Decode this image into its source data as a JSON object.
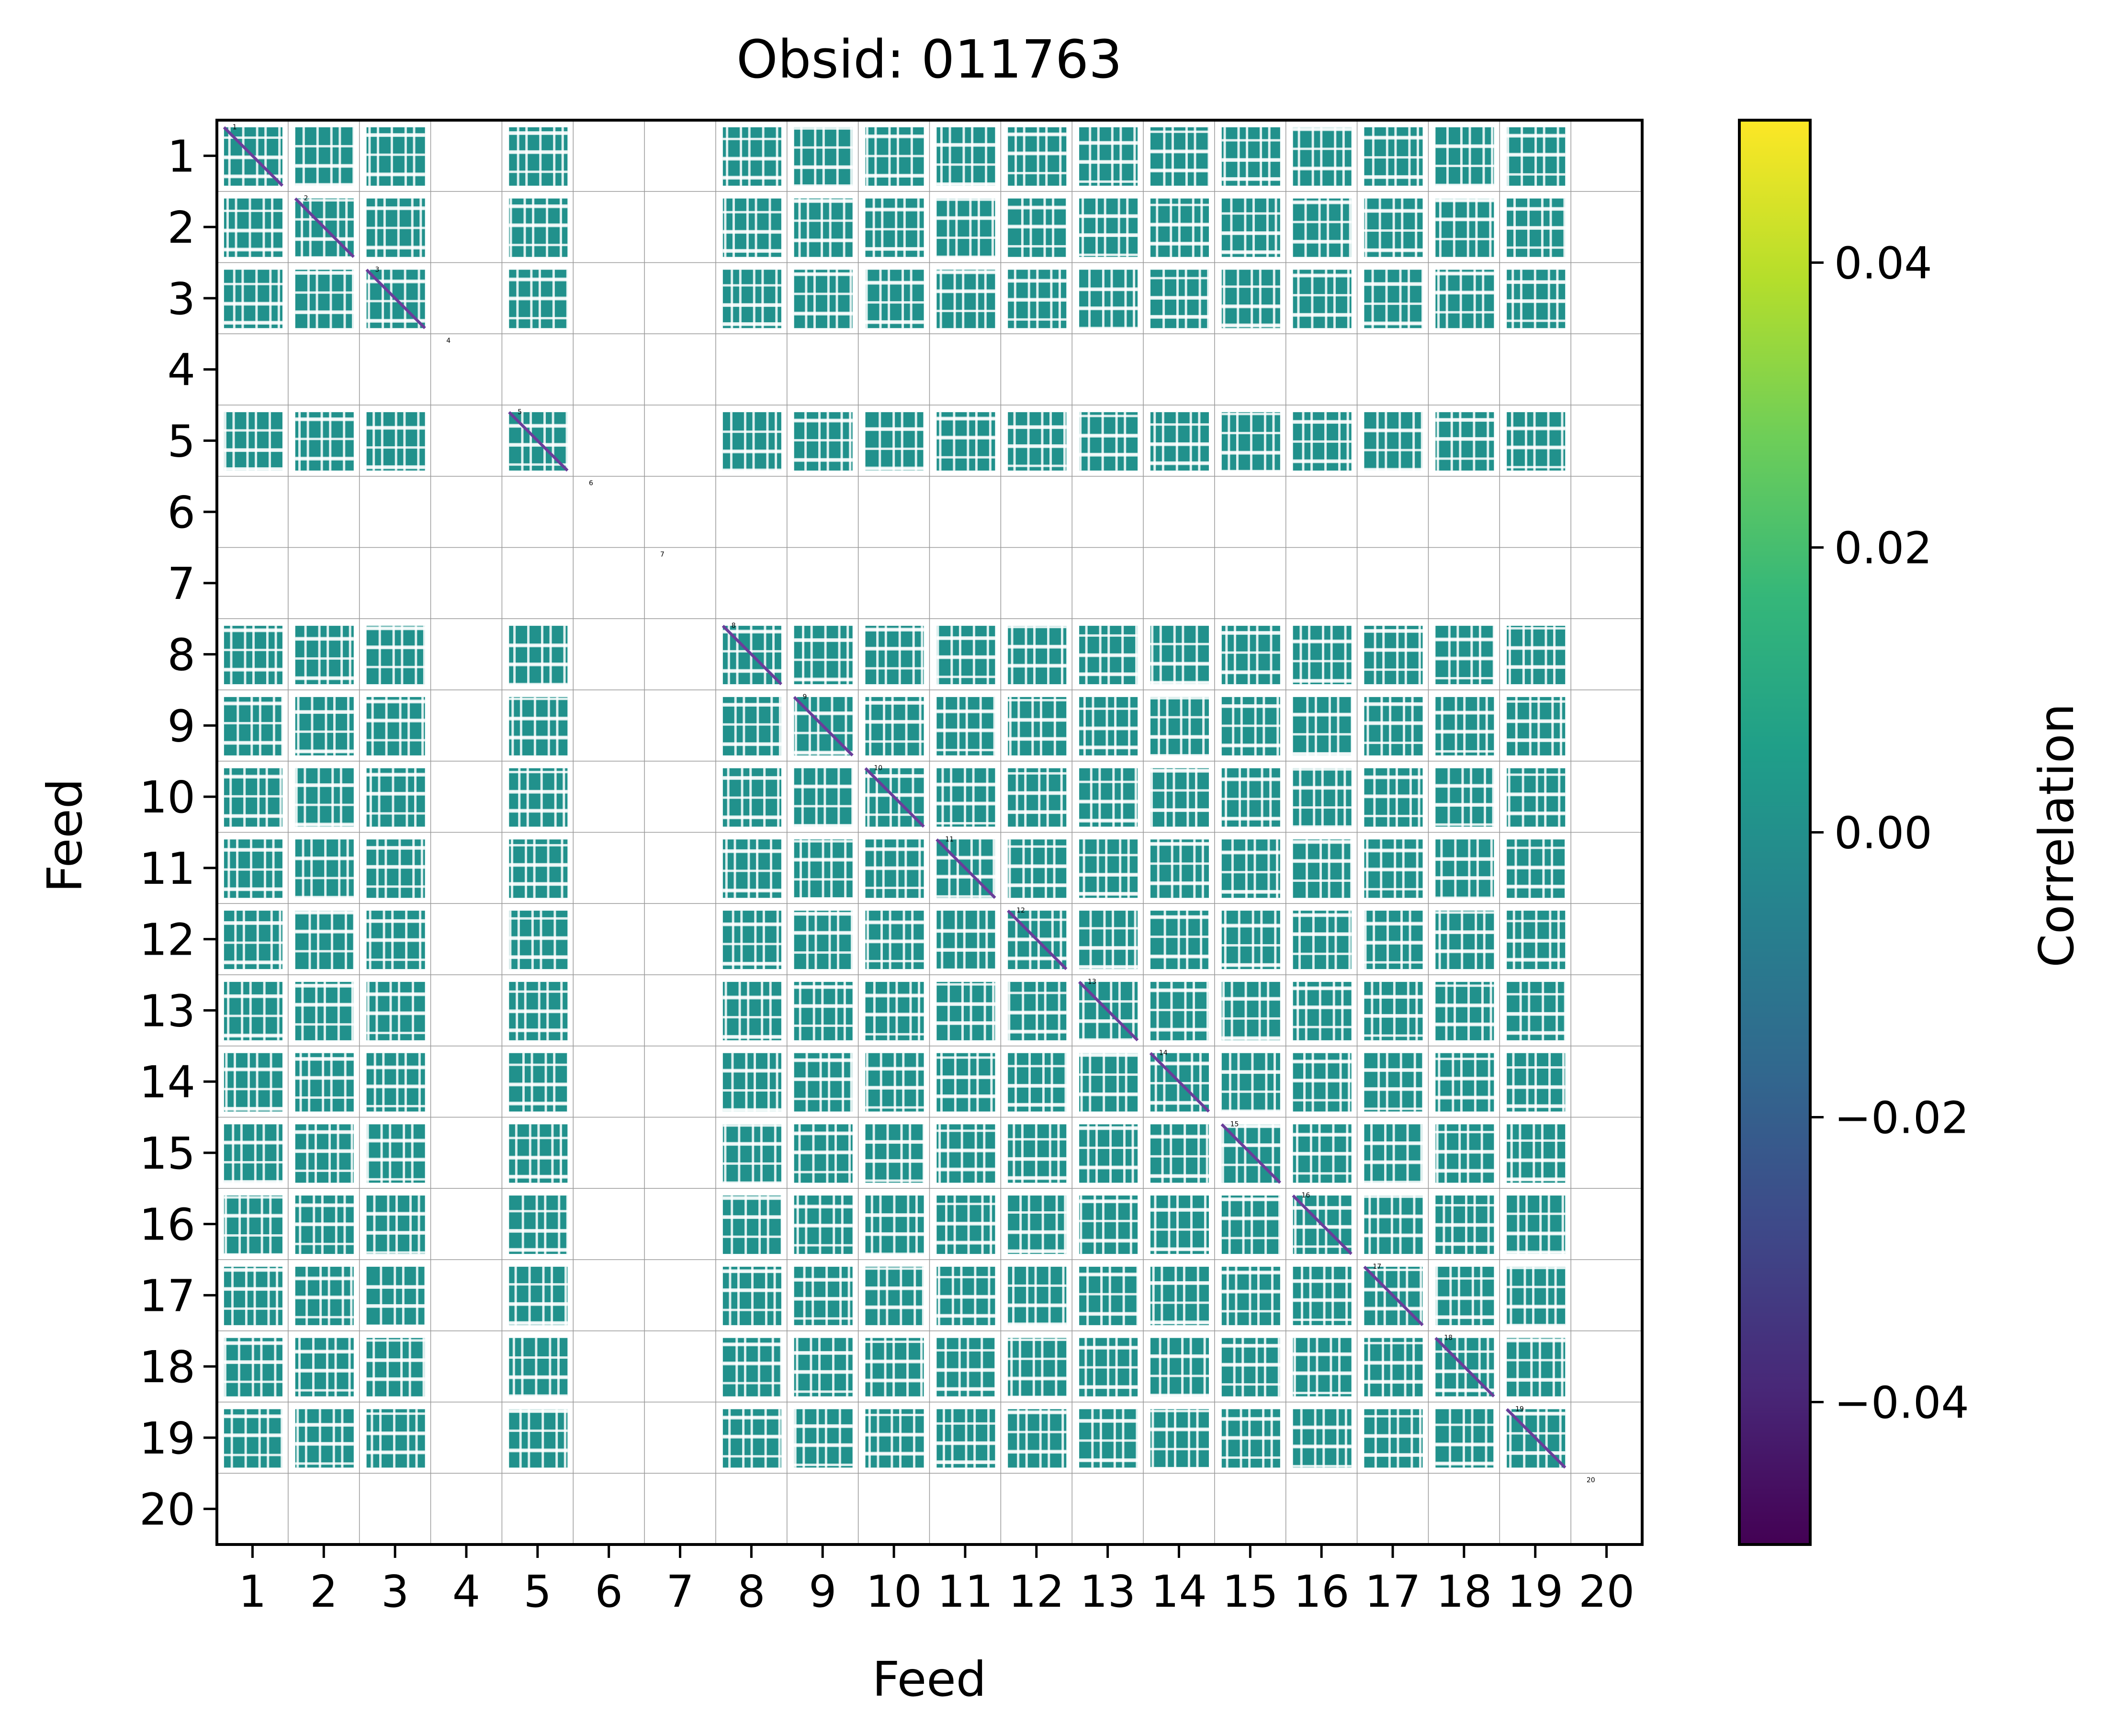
{
  "chart_data": {
    "type": "heatmap",
    "title": "Obsid: 011763",
    "xlabel": "Feed",
    "ylabel": "Feed",
    "x_tick_labels": [
      "1",
      "2",
      "3",
      "4",
      "5",
      "6",
      "7",
      "8",
      "9",
      "10",
      "11",
      "12",
      "13",
      "14",
      "15",
      "16",
      "17",
      "18",
      "19",
      "20"
    ],
    "y_tick_labels": [
      "1",
      "2",
      "3",
      "4",
      "5",
      "6",
      "7",
      "8",
      "9",
      "10",
      "11",
      "12",
      "13",
      "14",
      "15",
      "16",
      "17",
      "18",
      "19",
      "20"
    ],
    "block_labels": [
      "1",
      "2",
      "3",
      "4",
      "5",
      "6",
      "7",
      "8",
      "9",
      "10",
      "11",
      "12",
      "13",
      "14",
      "15",
      "16",
      "17",
      "18",
      "19",
      "20"
    ],
    "grid": true,
    "active_feeds": [
      1,
      2,
      3,
      5,
      8,
      9,
      10,
      11,
      12,
      13,
      14,
      15,
      16,
      17,
      18,
      19
    ],
    "dead_feeds": [
      4,
      6,
      7,
      20
    ],
    "fill_value": 0.0,
    "fill_color": "#21918c",
    "diagonal_color": "#6a3d9a",
    "colorbar": {
      "label": "Correlation",
      "ticks": [
        0.04,
        0.02,
        0.0,
        -0.02,
        -0.04
      ],
      "tick_labels": [
        "0.04",
        "0.02",
        "0.00",
        "−0.02",
        "−0.04"
      ],
      "range": [
        -0.05,
        0.05
      ],
      "colormap": "viridis",
      "colormap_stops": [
        "#440154",
        "#482878",
        "#3e4989",
        "#31688e",
        "#26828e",
        "#1f9e89",
        "#35b779",
        "#6ece58",
        "#b5de2b",
        "#fde725"
      ]
    }
  }
}
